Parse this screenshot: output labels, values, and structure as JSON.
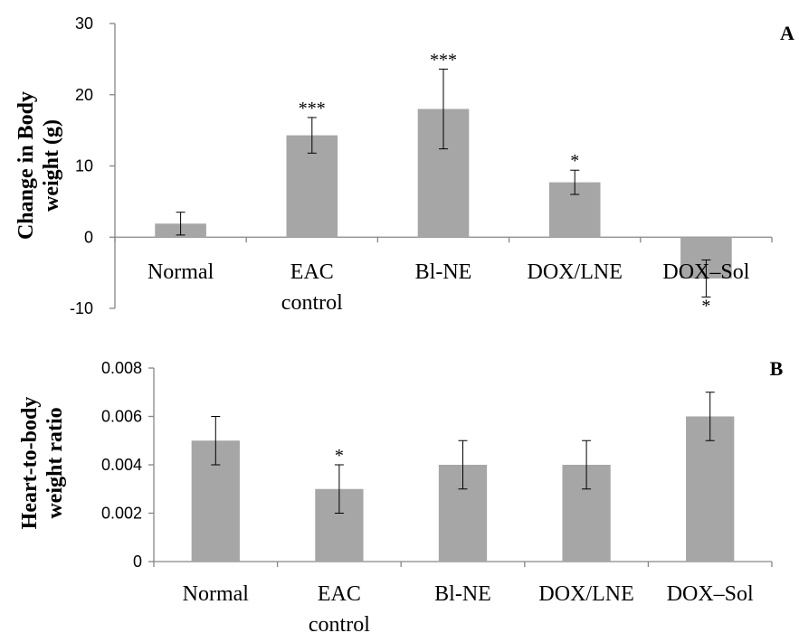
{
  "chart_data": [
    {
      "type": "bar",
      "panel_label": "A",
      "ylabel": "Change in Body weight (g)",
      "ylabel_lines": [
        "Change in Body",
        "weight (g)"
      ],
      "ylim": [
        -10,
        30
      ],
      "yticks": [
        -10,
        0,
        10,
        20,
        30
      ],
      "ytick_labels": [
        "-10",
        "0",
        "10",
        "20",
        "30"
      ],
      "categories": [
        "Normal",
        "EAC control",
        "Bl-NE",
        "DOX/LNE",
        "DOX–Sol"
      ],
      "category_lines": [
        [
          "Normal"
        ],
        [
          "EAC",
          "control"
        ],
        [
          "Bl-NE"
        ],
        [
          "DOX/LNE"
        ],
        [
          "DOX–Sol"
        ]
      ],
      "values": [
        1.9,
        14.3,
        18.0,
        7.7,
        -5.8
      ],
      "errors": [
        1.6,
        2.5,
        5.6,
        1.7,
        2.6
      ],
      "significance": [
        "",
        "***",
        "***",
        "*",
        "*"
      ],
      "bar_color": "#a6a6a6",
      "grid": false
    },
    {
      "type": "bar",
      "panel_label": "B",
      "ylabel": "Heart-to-body weight ratio",
      "ylabel_lines": [
        "Heart-to-body",
        "weight ratio"
      ],
      "ylim": [
        0,
        0.008
      ],
      "yticks": [
        0,
        0.002,
        0.004,
        0.006,
        0.008
      ],
      "ytick_labels": [
        "0",
        "0.002",
        "0.004",
        "0.006",
        "0.008"
      ],
      "categories": [
        "Normal",
        "EAC control",
        "Bl-NE",
        "DOX/LNE",
        "DOX–Sol"
      ],
      "category_lines": [
        [
          "Normal"
        ],
        [
          "EAC",
          "control"
        ],
        [
          "Bl-NE"
        ],
        [
          "DOX/LNE"
        ],
        [
          "DOX–Sol"
        ]
      ],
      "values": [
        0.005,
        0.003,
        0.004,
        0.004,
        0.006
      ],
      "errors": [
        0.001,
        0.001,
        0.001,
        0.001,
        0.001
      ],
      "significance": [
        "",
        "*",
        "",
        "",
        ""
      ],
      "bar_color": "#a6a6a6",
      "grid": false
    }
  ]
}
